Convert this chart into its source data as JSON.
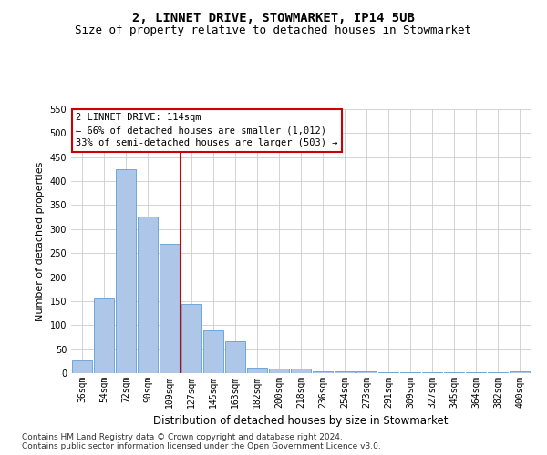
{
  "title": "2, LINNET DRIVE, STOWMARKET, IP14 5UB",
  "subtitle": "Size of property relative to detached houses in Stowmarket",
  "xlabel": "Distribution of detached houses by size in Stowmarket",
  "ylabel": "Number of detached properties",
  "categories": [
    "36sqm",
    "54sqm",
    "72sqm",
    "90sqm",
    "109sqm",
    "127sqm",
    "145sqm",
    "163sqm",
    "182sqm",
    "200sqm",
    "218sqm",
    "236sqm",
    "254sqm",
    "273sqm",
    "291sqm",
    "309sqm",
    "327sqm",
    "345sqm",
    "364sqm",
    "382sqm",
    "400sqm"
  ],
  "values": [
    27,
    155,
    425,
    327,
    270,
    145,
    90,
    67,
    12,
    10,
    10,
    3,
    3,
    3,
    2,
    2,
    2,
    2,
    2,
    2,
    4
  ],
  "bar_color": "#aec6e8",
  "bar_edge_color": "#5a9fd4",
  "vline_x_index": 4,
  "vline_color": "#cc0000",
  "ylim": [
    0,
    550
  ],
  "yticks": [
    0,
    50,
    100,
    150,
    200,
    250,
    300,
    350,
    400,
    450,
    500,
    550
  ],
  "annotation_line1": "2 LINNET DRIVE: 114sqm",
  "annotation_line2": "← 66% of detached houses are smaller (1,012)",
  "annotation_line3": "33% of semi-detached houses are larger (503) →",
  "annotation_box_color": "#ffffff",
  "annotation_box_edge": "#cc0000",
  "footer1": "Contains HM Land Registry data © Crown copyright and database right 2024.",
  "footer2": "Contains public sector information licensed under the Open Government Licence v3.0.",
  "background_color": "#ffffff",
  "grid_color": "#cccccc",
  "title_fontsize": 10,
  "subtitle_fontsize": 9,
  "xlabel_fontsize": 8.5,
  "ylabel_fontsize": 8,
  "tick_fontsize": 7,
  "annotation_fontsize": 7.5,
  "footer_fontsize": 6.5
}
